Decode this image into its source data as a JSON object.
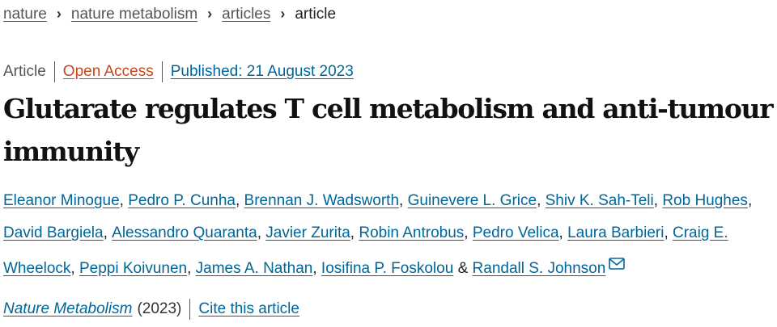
{
  "breadcrumb": {
    "items": [
      "nature",
      "nature metabolism",
      "articles"
    ],
    "current": "article"
  },
  "meta": {
    "type": "Article",
    "access": "Open Access",
    "published": "Published: 21 August 2023"
  },
  "title": "Glutarate regulates T cell metabolism and anti-tumour immunity",
  "authors": [
    "Eleanor Minogue",
    "Pedro P. Cunha",
    "Brennan J. Wadsworth",
    "Guinevere L. Grice",
    "Shiv K. Sah-Teli",
    "Rob Hughes",
    "David Bargiela",
    "Alessandro Quaranta",
    "Javier Zurita",
    "Robin Antrobus",
    "Pedro Velica",
    "Laura Barbieri",
    "Craig E. Wheelock",
    "Peppi Koivunen",
    "James A. Nathan",
    "Iosifina P. Foskolou",
    "Randall S. Johnson"
  ],
  "author_joiner": "&",
  "corresponding_icon": "mail-icon",
  "journal": {
    "name": "Nature Metabolism",
    "year": "(2023)",
    "cite": "Cite this article"
  },
  "colors": {
    "link": "#006699",
    "open_access": "#c4471d"
  }
}
